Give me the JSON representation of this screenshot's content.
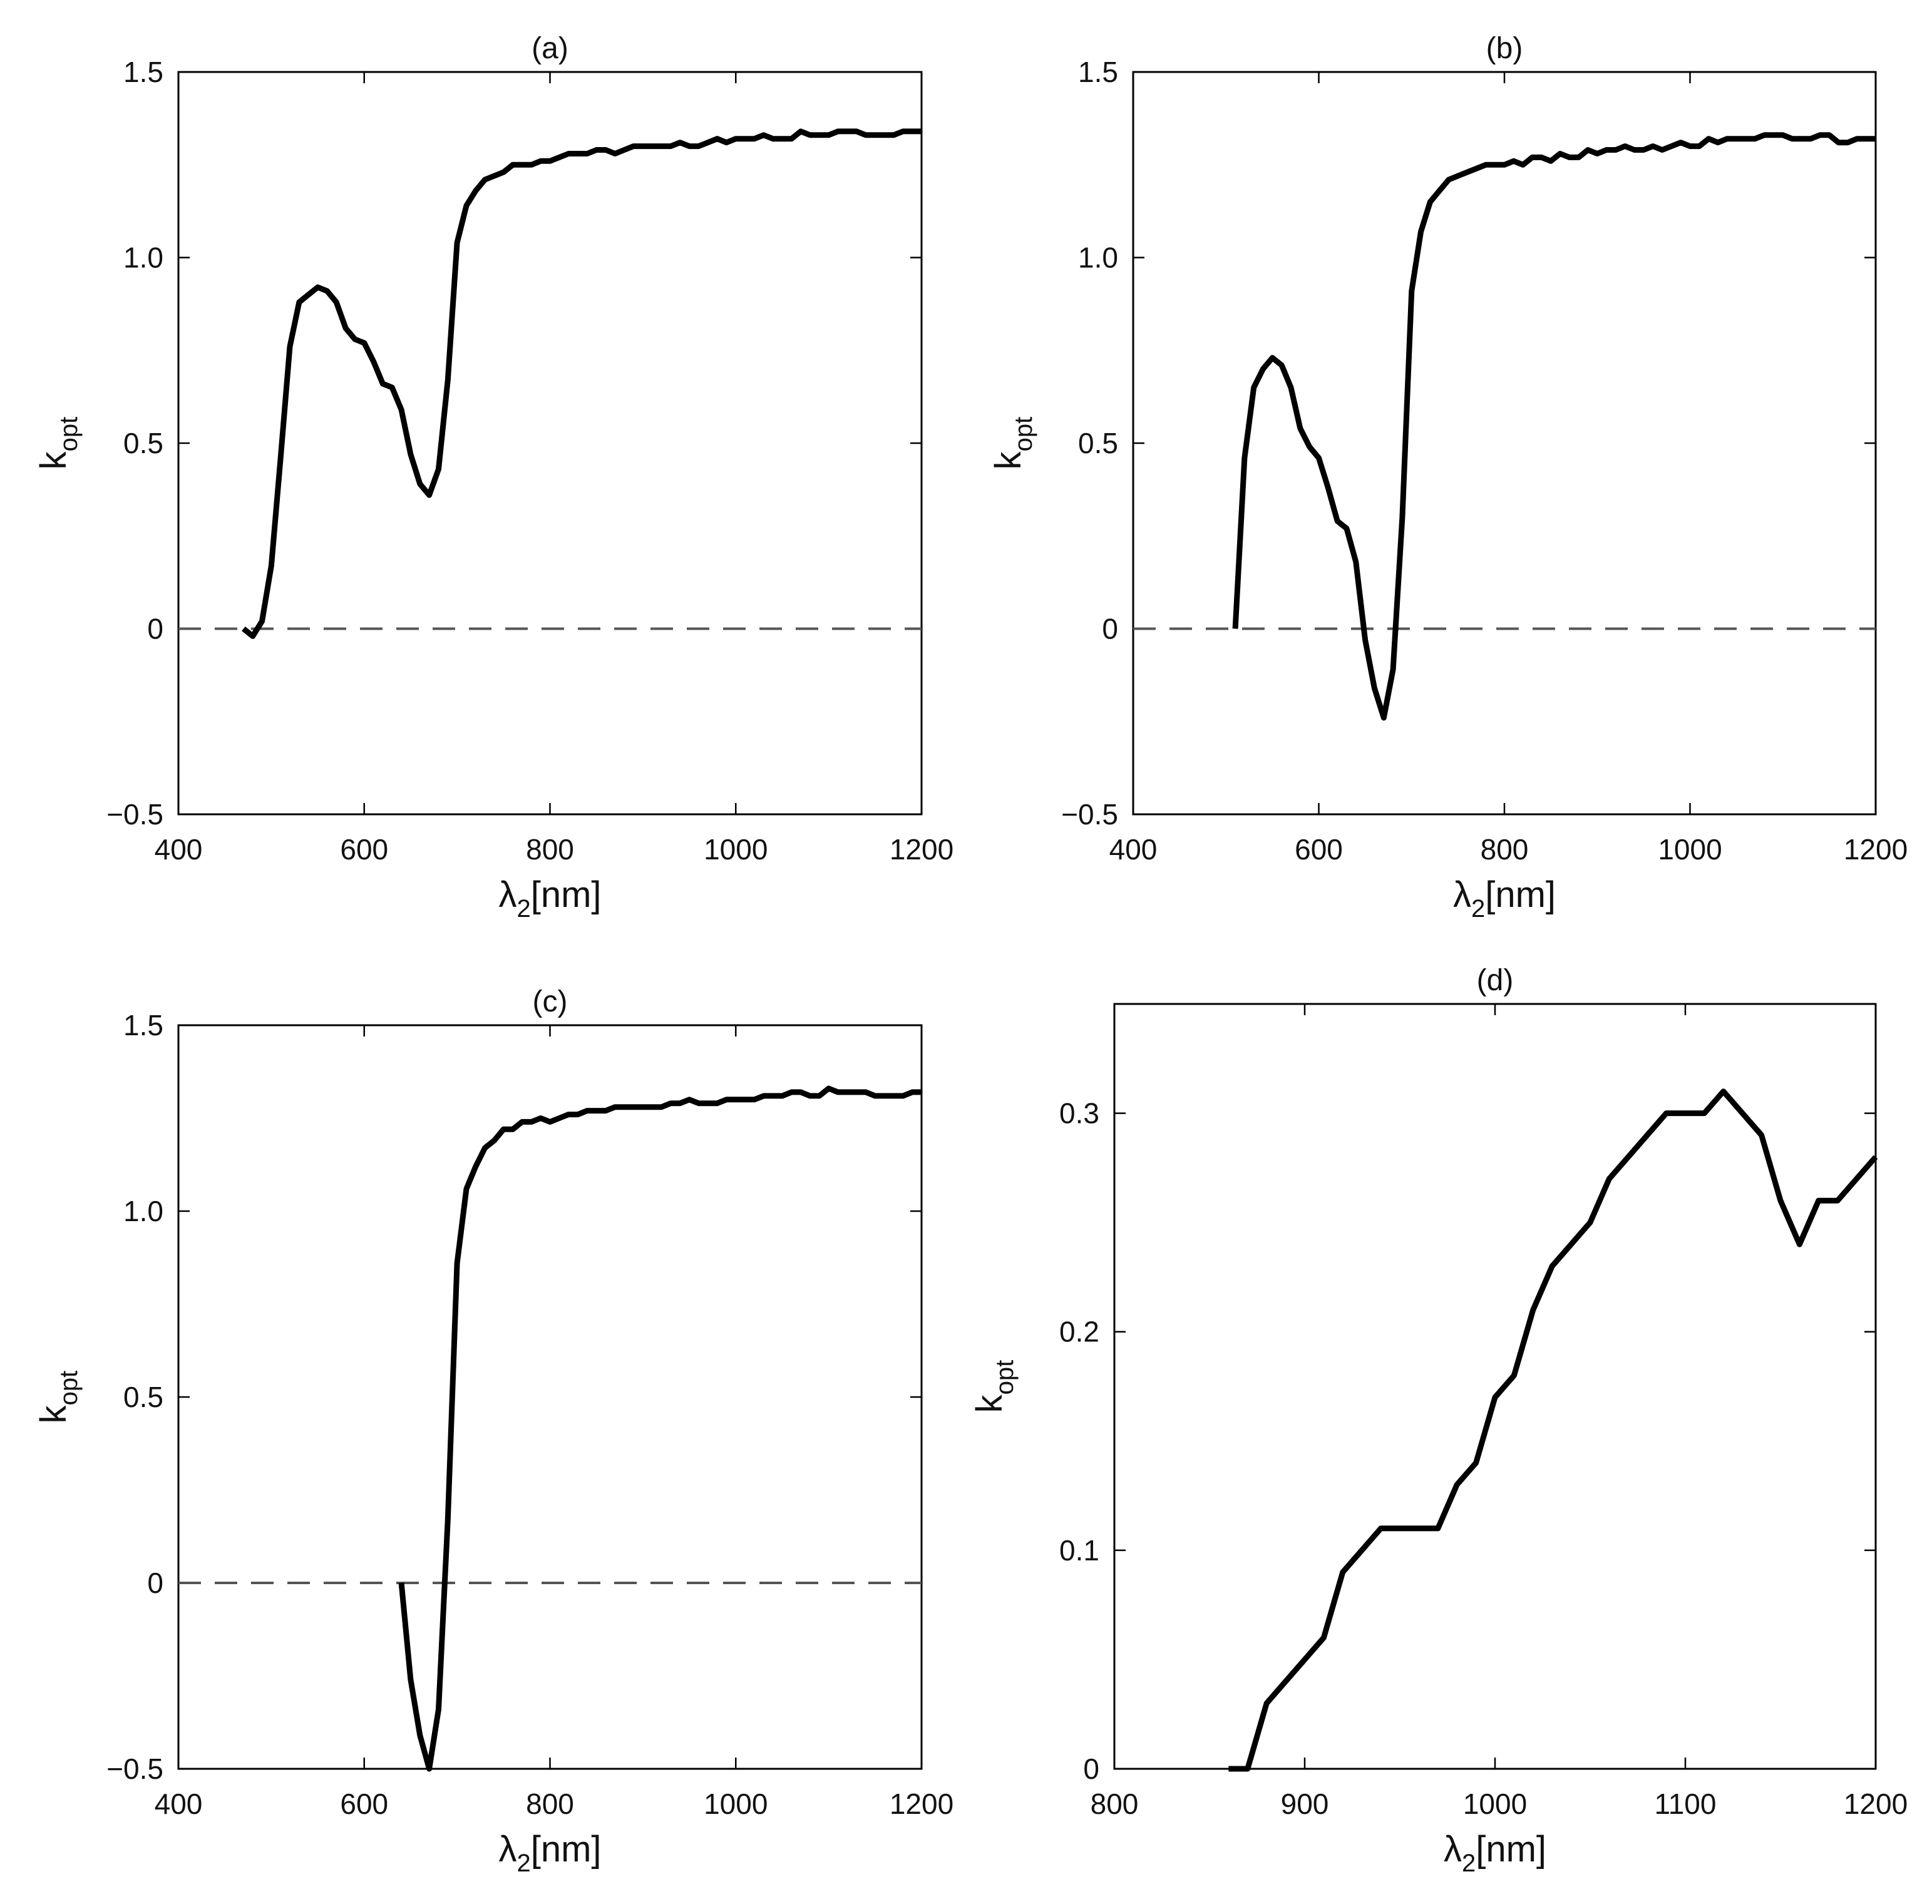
{
  "xlabel": {
    "symbol": "λ",
    "sub": "2",
    "unit": "[nm]"
  },
  "ylabel": {
    "symbol": "k",
    "sub": "opt"
  },
  "chart_data": [
    {
      "type": "line",
      "title": "(a)",
      "xlim": [
        400,
        1200
      ],
      "ylim": [
        -0.5,
        1.5
      ],
      "xticks": [
        400,
        600,
        800,
        1000,
        1200
      ],
      "yticks": [
        -0.5,
        0,
        0.5,
        1.0,
        1.5
      ],
      "xtick_labels": [
        "400",
        "600",
        "800",
        "1000",
        "1200"
      ],
      "ytick_labels": [
        "−0.5",
        "0",
        "0.5",
        "1.0",
        "1.5"
      ],
      "zero_line": true,
      "series": [
        {
          "name": "k_opt",
          "x": [
            470,
            480,
            490,
            500,
            510,
            520,
            530,
            540,
            550,
            560,
            570,
            580,
            590,
            600,
            610,
            620,
            630,
            640,
            650,
            660,
            670,
            680,
            690,
            700,
            710,
            720,
            730,
            740,
            750,
            760,
            770,
            780,
            790,
            800,
            810,
            820,
            830,
            840,
            850,
            860,
            870,
            880,
            890,
            900,
            910,
            920,
            930,
            940,
            950,
            960,
            970,
            980,
            990,
            1000,
            1010,
            1020,
            1030,
            1040,
            1050,
            1060,
            1070,
            1080,
            1090,
            1100,
            1110,
            1120,
            1130,
            1140,
            1150,
            1160,
            1170,
            1180,
            1190,
            1200
          ],
          "y": [
            0.0,
            -0.02,
            0.02,
            0.17,
            0.46,
            0.76,
            0.88,
            0.9,
            0.92,
            0.91,
            0.88,
            0.81,
            0.78,
            0.77,
            0.72,
            0.66,
            0.65,
            0.59,
            0.47,
            0.39,
            0.36,
            0.43,
            0.67,
            1.04,
            1.14,
            1.18,
            1.21,
            1.22,
            1.23,
            1.25,
            1.25,
            1.25,
            1.26,
            1.26,
            1.27,
            1.28,
            1.28,
            1.28,
            1.29,
            1.29,
            1.28,
            1.29,
            1.3,
            1.3,
            1.3,
            1.3,
            1.3,
            1.31,
            1.3,
            1.3,
            1.31,
            1.32,
            1.31,
            1.32,
            1.32,
            1.32,
            1.33,
            1.32,
            1.32,
            1.32,
            1.34,
            1.33,
            1.33,
            1.33,
            1.34,
            1.34,
            1.34,
            1.33,
            1.33,
            1.33,
            1.33,
            1.34,
            1.34,
            1.34
          ]
        }
      ]
    },
    {
      "type": "line",
      "title": "(b)",
      "xlim": [
        400,
        1200
      ],
      "ylim": [
        -0.5,
        1.5
      ],
      "xticks": [
        400,
        600,
        800,
        1000,
        1200
      ],
      "yticks": [
        -0.5,
        0,
        0.5,
        1.0,
        1.5
      ],
      "xtick_labels": [
        "400",
        "600",
        "800",
        "1000",
        "1200"
      ],
      "ytick_labels": [
        "−0.5",
        "0",
        "0.5",
        "1.0",
        "1.5"
      ],
      "zero_line": true,
      "series": [
        {
          "name": "k_opt",
          "x": [
            510,
            520,
            530,
            540,
            550,
            560,
            570,
            580,
            590,
            600,
            610,
            620,
            630,
            640,
            650,
            660,
            670,
            680,
            690,
            700,
            710,
            720,
            730,
            740,
            750,
            760,
            770,
            780,
            790,
            800,
            810,
            820,
            830,
            840,
            850,
            860,
            870,
            880,
            890,
            900,
            910,
            920,
            930,
            940,
            950,
            960,
            970,
            980,
            990,
            1000,
            1010,
            1020,
            1030,
            1040,
            1050,
            1060,
            1070,
            1080,
            1090,
            1100,
            1110,
            1120,
            1130,
            1140,
            1150,
            1160,
            1170,
            1180,
            1190,
            1200
          ],
          "y": [
            0.0,
            0.46,
            0.65,
            0.7,
            0.73,
            0.71,
            0.65,
            0.54,
            0.49,
            0.46,
            0.38,
            0.29,
            0.27,
            0.18,
            -0.03,
            -0.16,
            -0.24,
            -0.11,
            0.3,
            0.91,
            1.07,
            1.15,
            1.18,
            1.21,
            1.22,
            1.23,
            1.24,
            1.25,
            1.25,
            1.25,
            1.26,
            1.25,
            1.27,
            1.27,
            1.26,
            1.28,
            1.27,
            1.27,
            1.29,
            1.28,
            1.29,
            1.29,
            1.3,
            1.29,
            1.29,
            1.3,
            1.29,
            1.3,
            1.31,
            1.3,
            1.3,
            1.32,
            1.31,
            1.32,
            1.32,
            1.32,
            1.32,
            1.33,
            1.33,
            1.33,
            1.32,
            1.32,
            1.32,
            1.33,
            1.33,
            1.31,
            1.31,
            1.32,
            1.32,
            1.32
          ]
        }
      ]
    },
    {
      "type": "line",
      "title": "(c)",
      "xlim": [
        400,
        1200
      ],
      "ylim": [
        -0.5,
        1.5
      ],
      "xticks": [
        400,
        600,
        800,
        1000,
        1200
      ],
      "yticks": [
        -0.5,
        0,
        0.5,
        1.0,
        1.5
      ],
      "xtick_labels": [
        "400",
        "600",
        "800",
        "1000",
        "1200"
      ],
      "ytick_labels": [
        "−0.5",
        "0",
        "0.5",
        "1.0",
        "1.5"
      ],
      "zero_line": true,
      "series": [
        {
          "name": "k_opt",
          "x": [
            640,
            650,
            660,
            670,
            680,
            690,
            700,
            710,
            720,
            730,
            740,
            750,
            760,
            770,
            780,
            790,
            800,
            810,
            820,
            830,
            840,
            850,
            860,
            870,
            880,
            890,
            900,
            910,
            920,
            930,
            940,
            950,
            960,
            970,
            980,
            990,
            1000,
            1010,
            1020,
            1030,
            1040,
            1050,
            1060,
            1070,
            1080,
            1090,
            1100,
            1110,
            1120,
            1130,
            1140,
            1150,
            1160,
            1170,
            1180,
            1190,
            1200
          ],
          "y": [
            0.0,
            -0.26,
            -0.41,
            -0.5,
            -0.34,
            0.17,
            0.86,
            1.06,
            1.12,
            1.17,
            1.19,
            1.22,
            1.22,
            1.24,
            1.24,
            1.25,
            1.24,
            1.25,
            1.26,
            1.26,
            1.27,
            1.27,
            1.27,
            1.28,
            1.28,
            1.28,
            1.28,
            1.28,
            1.28,
            1.29,
            1.29,
            1.3,
            1.29,
            1.29,
            1.29,
            1.3,
            1.3,
            1.3,
            1.3,
            1.31,
            1.31,
            1.31,
            1.32,
            1.32,
            1.31,
            1.31,
            1.33,
            1.32,
            1.32,
            1.32,
            1.32,
            1.31,
            1.31,
            1.31,
            1.31,
            1.32,
            1.32
          ]
        }
      ]
    },
    {
      "type": "line",
      "title": "(d)",
      "xlim": [
        800,
        1200
      ],
      "ylim": [
        0,
        0.35
      ],
      "xticks": [
        800,
        900,
        1000,
        1100,
        1200
      ],
      "yticks": [
        0,
        0.1,
        0.2,
        0.3
      ],
      "xtick_labels": [
        "800",
        "900",
        "1000",
        "1100",
        "1200"
      ],
      "ytick_labels": [
        "0",
        "0.1",
        "0.2",
        "0.3"
      ],
      "zero_line": false,
      "series": [
        {
          "name": "k_opt",
          "x": [
            860,
            870,
            880,
            890,
            900,
            910,
            920,
            930,
            940,
            950,
            960,
            970,
            980,
            990,
            1000,
            1010,
            1020,
            1030,
            1040,
            1050,
            1060,
            1070,
            1080,
            1090,
            1100,
            1110,
            1120,
            1130,
            1140,
            1150,
            1160,
            1170,
            1180,
            1190,
            1200
          ],
          "y": [
            0.0,
            0.0,
            0.03,
            0.04,
            0.05,
            0.06,
            0.09,
            0.1,
            0.11,
            0.11,
            0.11,
            0.11,
            0.13,
            0.14,
            0.17,
            0.18,
            0.21,
            0.23,
            0.24,
            0.25,
            0.27,
            0.28,
            0.29,
            0.3,
            0.3,
            0.3,
            0.31,
            0.3,
            0.29,
            0.26,
            0.24,
            0.26,
            0.26,
            0.27,
            0.28
          ]
        }
      ]
    }
  ]
}
